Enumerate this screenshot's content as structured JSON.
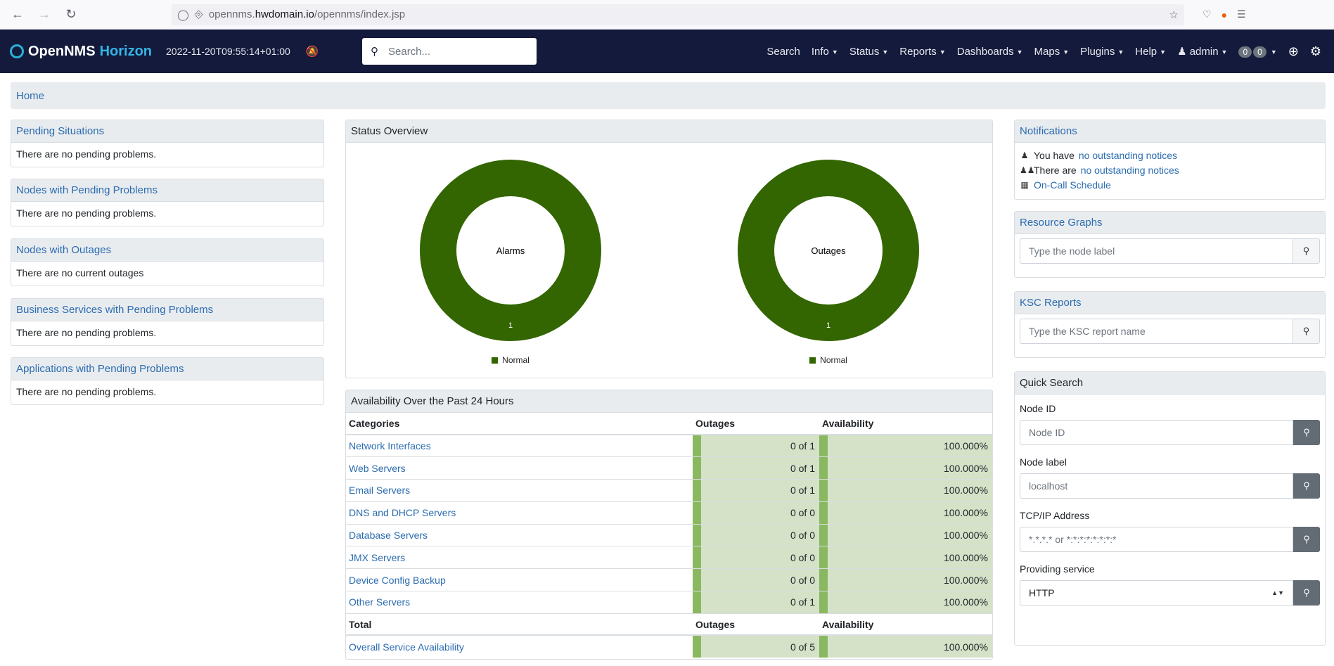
{
  "browser": {
    "url_prefix": "opennms.",
    "url_host": "hwdomain.io",
    "url_path": "/opennms/index.jsp",
    "back_icon": "arrow-left-icon",
    "forward_icon": "arrow-right-icon",
    "reload_icon": "reload-icon"
  },
  "navbar": {
    "brand_open": "OpenNMS",
    "brand_horizon": "Horizon",
    "timestamp": "2022-11-20T09:55:14+01:00",
    "search_placeholder": "Search...",
    "menu": {
      "search": "Search",
      "info": "Info",
      "status": "Status",
      "reports": "Reports",
      "dashboards": "Dashboards",
      "maps": "Maps",
      "plugins": "Plugins",
      "help": "Help",
      "user": "admin",
      "badge_a": "0",
      "badge_b": "0"
    }
  },
  "breadcrumb": {
    "home": "Home"
  },
  "left_panels": [
    {
      "title": "Pending Situations",
      "body": "There are no pending problems."
    },
    {
      "title": "Nodes with Pending Problems",
      "body": "There are no pending problems."
    },
    {
      "title": "Nodes with Outages",
      "body": "There are no current outages"
    },
    {
      "title": "Business Services with Pending Problems",
      "body": "There are no pending problems."
    },
    {
      "title": "Applications with Pending Problems",
      "body": "There are no pending problems."
    }
  ],
  "status_overview": {
    "title": "Status Overview",
    "charts": [
      {
        "center_label": "Alarms",
        "value_label": "1",
        "legend": "Normal",
        "color": "#336600"
      },
      {
        "center_label": "Outages",
        "value_label": "1",
        "legend": "Normal",
        "color": "#336600"
      }
    ]
  },
  "availability": {
    "title": "Availability Over the Past 24 Hours",
    "headers": {
      "categories": "Categories",
      "outages": "Outages",
      "availability": "Availability"
    },
    "rows": [
      {
        "category": "Network Interfaces",
        "outages": "0 of 1",
        "availability": "100.000%"
      },
      {
        "category": "Web Servers",
        "outages": "0 of 1",
        "availability": "100.000%"
      },
      {
        "category": "Email Servers",
        "outages": "0 of 1",
        "availability": "100.000%"
      },
      {
        "category": "DNS and DHCP Servers",
        "outages": "0 of 0",
        "availability": "100.000%"
      },
      {
        "category": "Database Servers",
        "outages": "0 of 0",
        "availability": "100.000%"
      },
      {
        "category": "JMX Servers",
        "outages": "0 of 0",
        "availability": "100.000%"
      },
      {
        "category": "Device Config Backup",
        "outages": "0 of 0",
        "availability": "100.000%"
      },
      {
        "category": "Other Servers",
        "outages": "0 of 1",
        "availability": "100.000%"
      }
    ],
    "total_headers": {
      "total": "Total",
      "outages": "Outages",
      "availability": "Availability"
    },
    "total_row": {
      "category": "Overall Service Availability",
      "outages": "0 of 5",
      "availability": "100.000%"
    }
  },
  "notifications": {
    "title": "Notifications",
    "line1_prefix": "You have",
    "line1_link": "no outstanding notices",
    "line2_prefix": "There are",
    "line2_link": "no outstanding notices",
    "line3_link": "On-Call Schedule"
  },
  "resource_graphs": {
    "title": "Resource Graphs",
    "placeholder": "Type the node label"
  },
  "ksc_reports": {
    "title": "KSC Reports",
    "placeholder": "Type the KSC report name"
  },
  "quick_search": {
    "title": "Quick Search",
    "node_id_label": "Node ID",
    "node_id_placeholder": "Node ID",
    "node_label_label": "Node label",
    "node_label_placeholder": "localhost",
    "tcpip_label": "TCP/IP Address",
    "tcpip_placeholder": "*.*.*.* or *:*:*:*:*:*:*:*",
    "service_label": "Providing service",
    "service_value": "HTTP"
  }
}
